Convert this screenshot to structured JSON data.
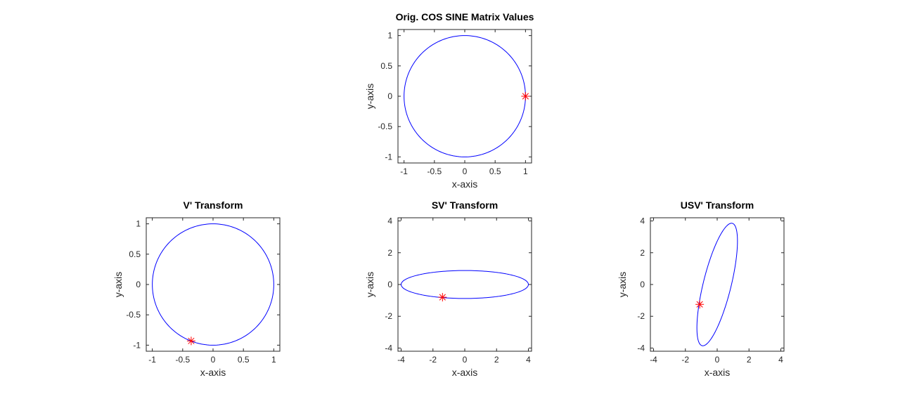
{
  "figure": {
    "background": "#ffffff"
  },
  "chart_data": [
    {
      "type": "line",
      "title": "Orig. COS SINE Matrix Values",
      "xlabel": "x-axis",
      "ylabel": "y-axis",
      "xlim": [
        -1.1,
        1.1
      ],
      "ylim": [
        -1.1,
        1.1
      ],
      "xticks": [
        -1,
        -0.5,
        0,
        0.5,
        1
      ],
      "xtick_labels": [
        "-1",
        "-0.5",
        "0",
        "0.5",
        "1"
      ],
      "yticks": [
        -1,
        -0.5,
        0,
        0.5,
        1
      ],
      "ytick_labels": [
        "-1",
        "-0.5",
        "0",
        "0.5",
        "1"
      ],
      "grid": false,
      "series": [
        {
          "kind": "ellipse",
          "color": "#0000ff",
          "center": [
            0,
            0
          ],
          "axis_u": [
            1,
            0
          ],
          "axis_v": [
            0,
            1
          ]
        },
        {
          "kind": "marker",
          "marker": "asterisk",
          "color": "#ff0000",
          "point": [
            1,
            0
          ]
        }
      ]
    },
    {
      "type": "line",
      "title": "V' Transform",
      "xlabel": "x-axis",
      "ylabel": "y-axis",
      "xlim": [
        -1.1,
        1.1
      ],
      "ylim": [
        -1.1,
        1.1
      ],
      "xticks": [
        -1,
        -0.5,
        0,
        0.5,
        1
      ],
      "xtick_labels": [
        "-1",
        "-0.5",
        "0",
        "0.5",
        "1"
      ],
      "yticks": [
        -1,
        -0.5,
        0,
        0.5,
        1
      ],
      "ytick_labels": [
        "-1",
        "-0.5",
        "0",
        "0.5",
        "1"
      ],
      "grid": false,
      "series": [
        {
          "kind": "ellipse",
          "color": "#0000ff",
          "center": [
            0,
            0
          ],
          "axis_u": [
            1,
            0
          ],
          "axis_v": [
            0,
            1
          ]
        },
        {
          "kind": "marker",
          "marker": "asterisk",
          "color": "#ff0000",
          "point": [
            -0.36,
            -0.93
          ]
        }
      ]
    },
    {
      "type": "line",
      "title": "SV' Transform",
      "xlabel": "x-axis",
      "ylabel": "y-axis",
      "xlim": [
        -4.2,
        4.2
      ],
      "ylim": [
        -4.2,
        4.2
      ],
      "xticks": [
        -4,
        -2,
        0,
        2,
        4
      ],
      "xtick_labels": [
        "-4",
        "-2",
        "0",
        "2",
        "4"
      ],
      "yticks": [
        -4,
        -2,
        0,
        2,
        4
      ],
      "ytick_labels": [
        "-4",
        "-2",
        "0",
        "2",
        "4"
      ],
      "grid": false,
      "series": [
        {
          "kind": "ellipse",
          "color": "#0000ff",
          "center": [
            0,
            0
          ],
          "axis_u": [
            4,
            0
          ],
          "axis_v": [
            0,
            0.88
          ]
        },
        {
          "kind": "marker",
          "marker": "asterisk",
          "color": "#ff0000",
          "point": [
            -1.4,
            -0.8
          ]
        }
      ]
    },
    {
      "type": "line",
      "title": "USV' Transform",
      "xlabel": "x-axis",
      "ylabel": "y-axis",
      "xlim": [
        -4.2,
        4.2
      ],
      "ylim": [
        -4.2,
        4.2
      ],
      "xticks": [
        -4,
        -2,
        0,
        2,
        4
      ],
      "xtick_labels": [
        "-4",
        "-2",
        "0",
        "2",
        "4"
      ],
      "yticks": [
        -4,
        -2,
        0,
        2,
        4
      ],
      "ytick_labels": [
        "-4",
        "-2",
        "0",
        "2",
        "4"
      ],
      "grid": false,
      "series": [
        {
          "kind": "ellipse",
          "color": "#0000ff",
          "center": [
            0,
            0
          ],
          "axis_u": [
            0.95,
            3.85
          ],
          "axis_v": [
            -0.85,
            0.21
          ]
        },
        {
          "kind": "marker",
          "marker": "asterisk",
          "color": "#ff0000",
          "point": [
            -1.1,
            -1.25
          ]
        }
      ]
    }
  ]
}
